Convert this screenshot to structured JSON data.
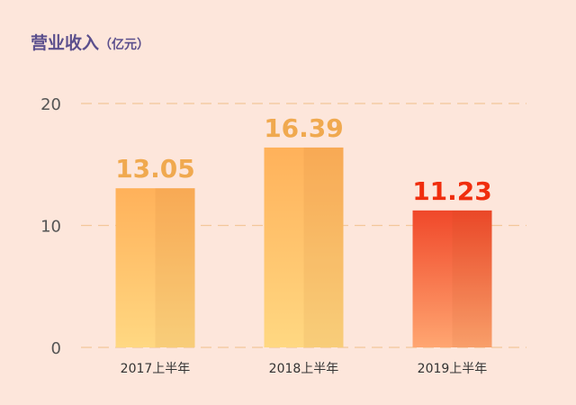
{
  "chart_data": {
    "type": "bar",
    "title": "营业收入",
    "unit": "（亿元）",
    "categories": [
      "2017上半年",
      "2018上半年",
      "2019上半年"
    ],
    "values": [
      13.05,
      16.39,
      11.23
    ],
    "value_labels": [
      "13.05",
      "16.39",
      "11.23"
    ],
    "yticks": [
      "0",
      "10",
      "20"
    ],
    "ylim": [
      0,
      20
    ],
    "grid": true,
    "highlight_index": 2,
    "colors": {
      "background": "#fde6db",
      "title": "#5b4f8d",
      "label_normal": "#f0a94f",
      "label_highlight": "#f02e0e",
      "grid": "#f3c79a",
      "axis_text": "#555555",
      "bar_normal_top": "#ffb15a",
      "bar_normal_bottom": "#ffd882",
      "bar_highlight_top": "#f0482a",
      "bar_highlight_bottom": "#ffa671"
    }
  }
}
